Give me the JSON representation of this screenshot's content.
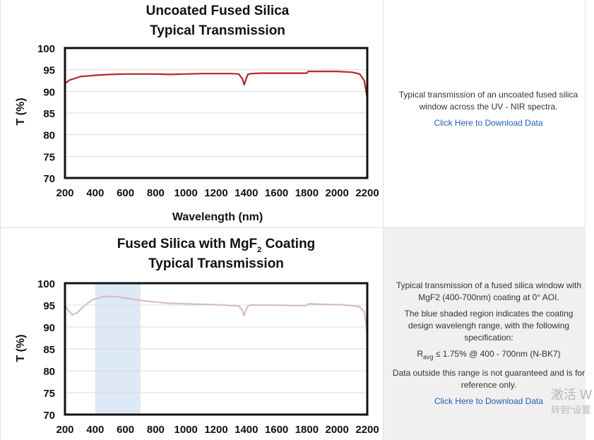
{
  "charts": [
    {
      "title_line1": "Uncoated Fused Silica",
      "title_line2": "Typical Transmission",
      "xlabel": "Wavelength (nm)",
      "ylabel": "T (%)",
      "color": "#b5262b"
    },
    {
      "title_line1a": "Fused Silica with MgF",
      "title_sub": "2",
      "title_line1b": " Coating",
      "title_line2": "Typical Transmission",
      "ylabel": "T (%)",
      "color": "#d9bcc5",
      "shade_color": "#dde9f5"
    }
  ],
  "chart_data": [
    {
      "type": "line",
      "title": "Uncoated Fused Silica Typical Transmission",
      "xlabel": "Wavelength (nm)",
      "ylabel": "T (%)",
      "xlim": [
        200,
        2200
      ],
      "ylim": [
        70,
        100
      ],
      "xticks": [
        200,
        400,
        600,
        800,
        1000,
        1200,
        1400,
        1600,
        1800,
        2000,
        2200
      ],
      "yticks": [
        70,
        75,
        80,
        85,
        90,
        95,
        100
      ],
      "grid": "horizontal",
      "series": [
        {
          "x": [
            200,
            230,
            300,
            400,
            500,
            600,
            700,
            800,
            900,
            1000,
            1100,
            1200,
            1300,
            1350,
            1375,
            1385,
            1395,
            1410,
            1430,
            1500,
            1600,
            1700,
            1800,
            1810,
            1900,
            2000,
            2100,
            2150,
            2180,
            2195,
            2200
          ],
          "y": [
            91.8,
            92.6,
            93.4,
            93.7,
            93.9,
            94.0,
            94.0,
            94.0,
            93.9,
            94.0,
            94.1,
            94.1,
            94.1,
            94.0,
            92.8,
            91.5,
            92.5,
            93.9,
            94.1,
            94.2,
            94.2,
            94.2,
            94.2,
            94.6,
            94.6,
            94.6,
            94.4,
            94.0,
            92.5,
            89.5,
            88.0
          ]
        }
      ]
    },
    {
      "type": "line",
      "title": "Fused Silica with MgF2 Coating Typical Transmission",
      "ylabel": "T (%)",
      "xlim": [
        200,
        2200
      ],
      "ylim": [
        70,
        100
      ],
      "xticks": [
        200,
        400,
        600,
        800,
        1000,
        1200,
        1400,
        1600,
        1800,
        2000,
        2200
      ],
      "yticks": [
        70,
        75,
        80,
        85,
        90,
        95,
        100
      ],
      "grid": "horizontal",
      "shaded_region": [
        400,
        700
      ],
      "series": [
        {
          "x": [
            200,
            220,
            250,
            280,
            320,
            380,
            450,
            500,
            550,
            600,
            700,
            800,
            900,
            1000,
            1100,
            1200,
            1300,
            1350,
            1375,
            1385,
            1395,
            1410,
            1430,
            1500,
            1600,
            1700,
            1800,
            1810,
            1900,
            2000,
            2100,
            2150,
            2180,
            2195,
            2200
          ],
          "y": [
            95.0,
            93.8,
            92.8,
            93.2,
            94.6,
            96.2,
            96.9,
            97.0,
            96.9,
            96.6,
            96.1,
            95.7,
            95.4,
            95.3,
            95.2,
            95.1,
            94.9,
            94.8,
            93.7,
            92.6,
            93.6,
            94.8,
            95.0,
            95.0,
            95.0,
            94.9,
            94.9,
            95.3,
            95.2,
            95.1,
            94.9,
            94.6,
            93.5,
            90.0,
            87.0
          ]
        }
      ]
    }
  ],
  "descriptions": [
    {
      "text": "Typical transmission of an uncoated fused silica window across the UV - NIR spectra.",
      "link": "Click Here to Download Data"
    },
    {
      "text1": "Typical transmission of a fused silica window with MgF2 (400-700nm) coating at 0° AOI.",
      "text2": "The blue shaded region indicates the coating design wavelengh range, with the following specification:",
      "spec_r": "R",
      "spec_sub": "avg",
      "spec_rest": " ≤ 1.75% @ 400 - 700nm (N-BK7)",
      "text3": "Data outside this range is not guaranteed and is for reference only.",
      "link": "Click Here to Download Data"
    }
  ],
  "watermark": {
    "line1": "激活 W",
    "line2": "转到“设置"
  }
}
